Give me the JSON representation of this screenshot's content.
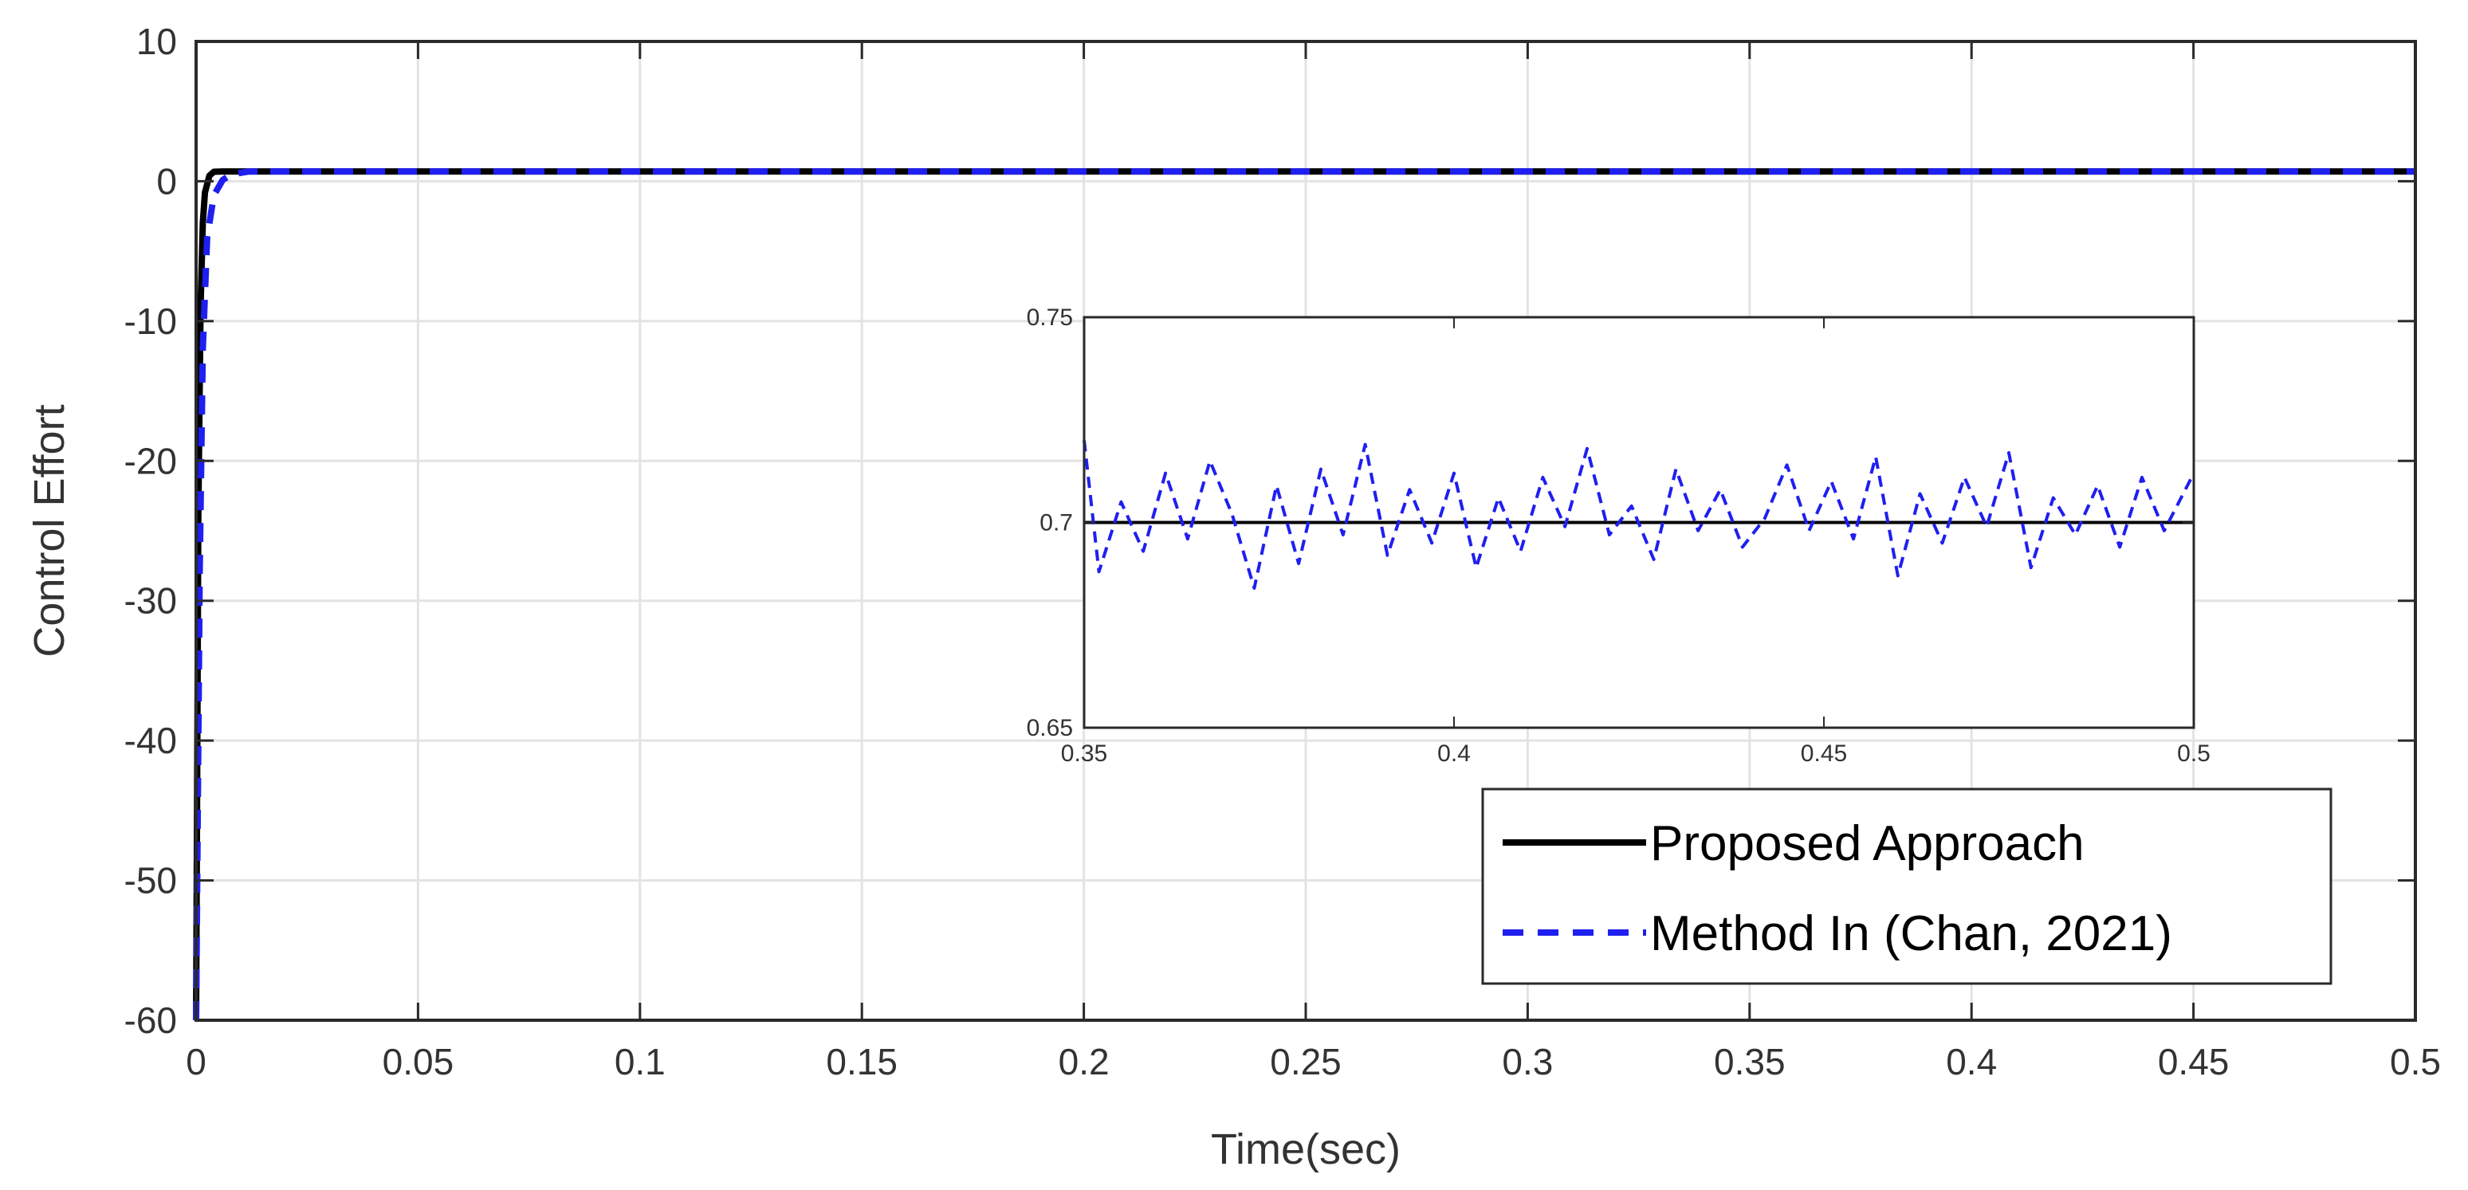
{
  "chart_data": [
    {
      "type": "line",
      "title": "",
      "xlabel": "Time(sec)",
      "ylabel": "Control Effort",
      "xlim": [
        0,
        0.5
      ],
      "ylim": [
        -60,
        10
      ],
      "xticks": [
        "0",
        "0.05",
        "0.1",
        "0.15",
        "0.2",
        "0.25",
        "0.3",
        "0.35",
        "0.4",
        "0.45",
        "0.5"
      ],
      "yticks": [
        "10",
        "0",
        "-10",
        "-20",
        "-30",
        "-40",
        "-50",
        "-60"
      ],
      "grid": true,
      "legend": "bottom-right",
      "series": [
        {
          "name": "Proposed Approach",
          "color": "#000000",
          "style": "solid",
          "x": [
            0,
            0.0005,
            0.001,
            0.0015,
            0.002,
            0.003,
            0.004,
            0.006,
            0.008,
            0.5
          ],
          "y": [
            -60,
            -24,
            -9,
            -3,
            -0.8,
            0.4,
            0.68,
            0.7,
            0.7,
            0.7
          ]
        },
        {
          "name": "Method In (Chan, 2021)",
          "color": "#1f1ff0",
          "style": "dashed",
          "x": [
            0,
            0.0008,
            0.0015,
            0.0025,
            0.004,
            0.006,
            0.008,
            0.012,
            0.5
          ],
          "y": [
            -60,
            -28,
            -12,
            -4,
            -1,
            0.1,
            0.5,
            0.7,
            0.7
          ]
        }
      ]
    },
    {
      "type": "line",
      "title": "",
      "xlabel": "",
      "ylabel": "",
      "xlim": [
        0.35,
        0.5
      ],
      "ylim": [
        0.65,
        0.75
      ],
      "xticks": [
        "0.35",
        "0.4",
        "0.45",
        "0.5"
      ],
      "yticks": [
        "0.75",
        "0.7",
        "0.65"
      ],
      "grid": false,
      "series": [
        {
          "color": "#000000",
          "style": "solid",
          "x": [
            0.35,
            0.5
          ],
          "y": [
            0.7,
            0.7
          ]
        },
        {
          "color": "#1f1ff0",
          "style": "dashed",
          "x": [
            0.35,
            0.352,
            0.355,
            0.358,
            0.361,
            0.364,
            0.367,
            0.37,
            0.373,
            0.376,
            0.379,
            0.382,
            0.385,
            0.388,
            0.391,
            0.394,
            0.397,
            0.4,
            0.403,
            0.406,
            0.409,
            0.412,
            0.415,
            0.418,
            0.421,
            0.424,
            0.427,
            0.43,
            0.433,
            0.436,
            0.439,
            0.442,
            0.445,
            0.448,
            0.451,
            0.454,
            0.457,
            0.46,
            0.463,
            0.466,
            0.469,
            0.472,
            0.475,
            0.478,
            0.481,
            0.484,
            0.487,
            0.49,
            0.493,
            0.496,
            0.5
          ],
          "y": [
            0.72,
            0.688,
            0.705,
            0.693,
            0.712,
            0.696,
            0.715,
            0.702,
            0.684,
            0.709,
            0.69,
            0.713,
            0.697,
            0.719,
            0.692,
            0.708,
            0.695,
            0.712,
            0.689,
            0.706,
            0.693,
            0.711,
            0.699,
            0.718,
            0.697,
            0.704,
            0.691,
            0.713,
            0.698,
            0.708,
            0.694,
            0.701,
            0.714,
            0.698,
            0.71,
            0.696,
            0.716,
            0.687,
            0.707,
            0.695,
            0.711,
            0.699,
            0.717,
            0.689,
            0.706,
            0.697,
            0.709,
            0.694,
            0.711,
            0.698,
            0.712
          ]
        }
      ]
    }
  ]
}
